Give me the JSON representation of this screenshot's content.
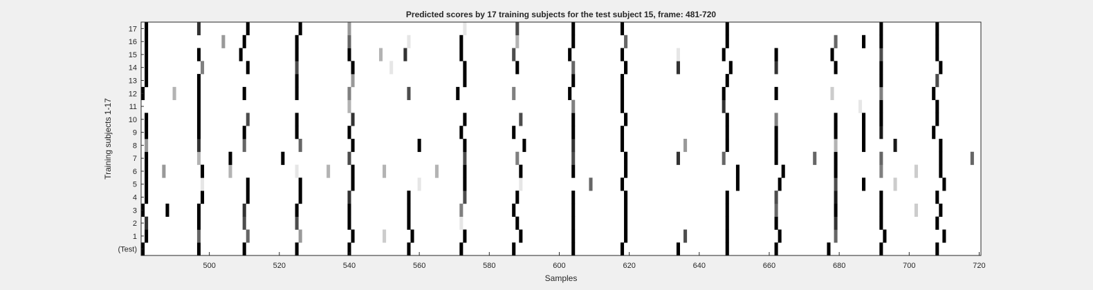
{
  "chart_data": {
    "type": "heatmap",
    "title": "Predicted scores by 17 training subjects for the test subject 15, frame: 481-720",
    "xlabel": "Samples",
    "ylabel": "Training subjects 1-17",
    "xlim": [
      481,
      720
    ],
    "x_ticks": [
      500,
      520,
      540,
      560,
      580,
      600,
      620,
      640,
      660,
      680,
      700,
      720
    ],
    "y_categories": [
      "(Test)",
      "1",
      "2",
      "3",
      "4",
      "5",
      "6",
      "7",
      "8",
      "9",
      "10",
      "11",
      "12",
      "13",
      "14",
      "15",
      "16",
      "17"
    ],
    "value_range": [
      0,
      1
    ],
    "colormap": "white (0) to black (1)",
    "rows": [
      {
        "label": "(Test)",
        "cells": [
          [
            481,
            1.0
          ],
          [
            497,
            1.0
          ],
          [
            510,
            1.0
          ],
          [
            525,
            1.0
          ],
          [
            540,
            1.0
          ],
          [
            557,
            1.0
          ],
          [
            572,
            1.0
          ],
          [
            587,
            1.0
          ],
          [
            604,
            1.0
          ],
          [
            618,
            1.0
          ],
          [
            634,
            1.0
          ],
          [
            648,
            1.0
          ],
          [
            662,
            1.0
          ],
          [
            677,
            1.0
          ],
          [
            692,
            1.0
          ],
          [
            708,
            1.0
          ]
        ]
      },
      {
        "label": "1",
        "cells": [
          [
            482,
            1.0
          ],
          [
            497,
            0.6
          ],
          [
            511,
            0.6
          ],
          [
            526,
            0.4
          ],
          [
            541,
            1.0
          ],
          [
            550,
            0.2
          ],
          [
            558,
            1.0
          ],
          [
            573,
            1.0
          ],
          [
            589,
            1.0
          ],
          [
            604,
            1.0
          ],
          [
            619,
            1.0
          ],
          [
            636,
            0.7
          ],
          [
            648,
            1.0
          ],
          [
            663,
            1.0
          ],
          [
            679,
            0.6
          ],
          [
            693,
            1.0
          ],
          [
            710,
            1.0
          ]
        ]
      },
      {
        "label": "2",
        "cells": [
          [
            482,
            0.8
          ],
          [
            497,
            1.0
          ],
          [
            510,
            0.7
          ],
          [
            525,
            0.7
          ],
          [
            540,
            1.0
          ],
          [
            557,
            1.0
          ],
          [
            572,
            0.1
          ],
          [
            588,
            1.0
          ],
          [
            604,
            1.0
          ],
          [
            619,
            1.0
          ],
          [
            648,
            1.0
          ],
          [
            662,
            1.0
          ],
          [
            679,
            0.8
          ],
          [
            692,
            1.0
          ],
          [
            708,
            1.0
          ]
        ]
      },
      {
        "label": "3",
        "cells": [
          [
            481,
            1.0
          ],
          [
            488,
            1.0
          ],
          [
            497,
            1.0
          ],
          [
            510,
            0.8
          ],
          [
            525,
            1.0
          ],
          [
            540,
            1.0
          ],
          [
            557,
            1.0
          ],
          [
            572,
            0.5
          ],
          [
            587,
            1.0
          ],
          [
            604,
            1.0
          ],
          [
            619,
            1.0
          ],
          [
            648,
            1.0
          ],
          [
            662,
            0.6
          ],
          [
            679,
            1.0
          ],
          [
            692,
            1.0
          ],
          [
            702,
            0.2
          ],
          [
            709,
            1.0
          ]
        ]
      },
      {
        "label": "4",
        "cells": [
          [
            482,
            1.0
          ],
          [
            498,
            1.0
          ],
          [
            511,
            1.0
          ],
          [
            526,
            1.0
          ],
          [
            540,
            0.8
          ],
          [
            557,
            1.0
          ],
          [
            573,
            0.7
          ],
          [
            588,
            1.0
          ],
          [
            604,
            1.0
          ],
          [
            619,
            1.0
          ],
          [
            648,
            1.0
          ],
          [
            662,
            0.7
          ],
          [
            679,
            0.9
          ],
          [
            692,
            1.0
          ],
          [
            708,
            1.0
          ]
        ]
      },
      {
        "label": "5",
        "cells": [
          [
            482,
            1.0
          ],
          [
            498,
            0.1
          ],
          [
            511,
            1.0
          ],
          [
            526,
            1.0
          ],
          [
            541,
            1.0
          ],
          [
            560,
            0.1
          ],
          [
            573,
            1.0
          ],
          [
            589,
            0.1
          ],
          [
            609,
            0.6
          ],
          [
            618,
            1.0
          ],
          [
            651,
            1.0
          ],
          [
            663,
            1.0
          ],
          [
            679,
            0.7
          ],
          [
            687,
            1.0
          ],
          [
            696,
            0.2
          ],
          [
            710,
            1.0
          ]
        ]
      },
      {
        "label": "6",
        "cells": [
          [
            482,
            1.0
          ],
          [
            487,
            0.4
          ],
          [
            498,
            1.0
          ],
          [
            506,
            0.3
          ],
          [
            525,
            0.1
          ],
          [
            534,
            0.3
          ],
          [
            541,
            1.0
          ],
          [
            550,
            0.3
          ],
          [
            565,
            0.3
          ],
          [
            573,
            1.0
          ],
          [
            589,
            1.0
          ],
          [
            604,
            1.0
          ],
          [
            619,
            1.0
          ],
          [
            651,
            1.0
          ],
          [
            664,
            1.0
          ],
          [
            679,
            1.0
          ],
          [
            692,
            0.5
          ],
          [
            702,
            0.2
          ],
          [
            709,
            1.0
          ]
        ]
      },
      {
        "label": "7",
        "cells": [
          [
            482,
            1.0
          ],
          [
            497,
            0.3
          ],
          [
            506,
            1.0
          ],
          [
            521,
            1.0
          ],
          [
            540,
            0.7
          ],
          [
            573,
            0.7
          ],
          [
            588,
            0.5
          ],
          [
            604,
            0.7
          ],
          [
            619,
            1.0
          ],
          [
            634,
            0.8
          ],
          [
            647,
            0.6
          ],
          [
            662,
            1.0
          ],
          [
            673,
            0.6
          ],
          [
            679,
            1.0
          ],
          [
            692,
            0.6
          ],
          [
            709,
            1.0
          ],
          [
            718,
            0.6
          ]
        ]
      },
      {
        "label": "8",
        "cells": [
          [
            482,
            0.4
          ],
          [
            497,
            0.8
          ],
          [
            510,
            0.6
          ],
          [
            526,
            0.6
          ],
          [
            541,
            1.0
          ],
          [
            560,
            1.0
          ],
          [
            573,
            1.0
          ],
          [
            590,
            1.0
          ],
          [
            604,
            0.8
          ],
          [
            618,
            1.0
          ],
          [
            636,
            0.4
          ],
          [
            648,
            1.0
          ],
          [
            662,
            1.0
          ],
          [
            679,
            0.3
          ],
          [
            687,
            1.0
          ],
          [
            696,
            0.9
          ],
          [
            709,
            1.0
          ]
        ]
      },
      {
        "label": "9",
        "cells": [
          [
            482,
            1.0
          ],
          [
            497,
            1.0
          ],
          [
            510,
            1.0
          ],
          [
            525,
            1.0
          ],
          [
            540,
            1.0
          ],
          [
            572,
            1.0
          ],
          [
            587,
            1.0
          ],
          [
            604,
            1.0
          ],
          [
            618,
            1.0
          ],
          [
            648,
            1.0
          ],
          [
            662,
            1.0
          ],
          [
            679,
            1.0
          ],
          [
            687,
            1.0
          ],
          [
            692,
            0.9
          ],
          [
            707,
            1.0
          ]
        ]
      },
      {
        "label": "10",
        "cells": [
          [
            482,
            1.0
          ],
          [
            497,
            1.0
          ],
          [
            511,
            0.7
          ],
          [
            525,
            1.0
          ],
          [
            541,
            0.8
          ],
          [
            573,
            1.0
          ],
          [
            589,
            0.7
          ],
          [
            604,
            1.0
          ],
          [
            619,
            1.0
          ],
          [
            648,
            1.0
          ],
          [
            662,
            0.5
          ],
          [
            679,
            1.0
          ],
          [
            687,
            1.0
          ],
          [
            692,
            1.0
          ],
          [
            708,
            1.0
          ]
        ]
      },
      {
        "label": "11",
        "cells": [
          [
            497,
            1.0
          ],
          [
            540,
            0.3
          ],
          [
            604,
            0.5
          ],
          [
            618,
            1.0
          ],
          [
            647,
            0.8
          ],
          [
            686,
            0.1
          ],
          [
            692,
            1.0
          ],
          [
            708,
            1.0
          ]
        ]
      },
      {
        "label": "12",
        "cells": [
          [
            481,
            1.0
          ],
          [
            490,
            0.3
          ],
          [
            497,
            1.0
          ],
          [
            510,
            1.0
          ],
          [
            525,
            1.0
          ],
          [
            540,
            0.5
          ],
          [
            557,
            0.7
          ],
          [
            571,
            1.0
          ],
          [
            587,
            0.5
          ],
          [
            603,
            1.0
          ],
          [
            618,
            1.0
          ],
          [
            647,
            1.0
          ],
          [
            662,
            1.0
          ],
          [
            678,
            0.2
          ],
          [
            692,
            0.5
          ],
          [
            707,
            1.0
          ]
        ]
      },
      {
        "label": "13",
        "cells": [
          [
            482,
            1.0
          ],
          [
            497,
            1.0
          ],
          [
            525,
            1.0
          ],
          [
            541,
            0.4
          ],
          [
            573,
            1.0
          ],
          [
            604,
            1.0
          ],
          [
            618,
            1.0
          ],
          [
            648,
            1.0
          ],
          [
            692,
            1.0
          ],
          [
            708,
            0.7
          ]
        ]
      },
      {
        "label": "14",
        "cells": [
          [
            482,
            1.0
          ],
          [
            498,
            0.5
          ],
          [
            511,
            1.0
          ],
          [
            525,
            0.7
          ],
          [
            541,
            1.0
          ],
          [
            552,
            0.1
          ],
          [
            573,
            1.0
          ],
          [
            588,
            1.0
          ],
          [
            604,
            0.6
          ],
          [
            619,
            1.0
          ],
          [
            634,
            0.8
          ],
          [
            649,
            1.0
          ],
          [
            662,
            0.8
          ],
          [
            679,
            1.0
          ],
          [
            692,
            1.0
          ],
          [
            709,
            1.0
          ]
        ]
      },
      {
        "label": "15",
        "cells": [
          [
            482,
            1.0
          ],
          [
            497,
            1.0
          ],
          [
            509,
            1.0
          ],
          [
            525,
            1.0
          ],
          [
            540,
            1.0
          ],
          [
            549,
            0.3
          ],
          [
            556,
            0.8
          ],
          [
            572,
            1.0
          ],
          [
            587,
            0.7
          ],
          [
            603,
            1.0
          ],
          [
            618,
            1.0
          ],
          [
            634,
            0.1
          ],
          [
            647,
            1.0
          ],
          [
            662,
            1.0
          ],
          [
            678,
            1.0
          ],
          [
            692,
            0.7
          ],
          [
            708,
            1.0
          ]
        ]
      },
      {
        "label": "16",
        "cells": [
          [
            482,
            1.0
          ],
          [
            504,
            0.4
          ],
          [
            510,
            1.0
          ],
          [
            525,
            1.0
          ],
          [
            540,
            0.6
          ],
          [
            557,
            0.1
          ],
          [
            572,
            1.0
          ],
          [
            588,
            0.3
          ],
          [
            604,
            1.0
          ],
          [
            619,
            0.6
          ],
          [
            648,
            1.0
          ],
          [
            679,
            0.6
          ],
          [
            687,
            1.0
          ],
          [
            692,
            1.0
          ],
          [
            708,
            1.0
          ]
        ]
      },
      {
        "label": "17",
        "cells": [
          [
            482,
            1.0
          ],
          [
            497,
            0.8
          ],
          [
            511,
            1.0
          ],
          [
            526,
            1.0
          ],
          [
            540,
            0.4
          ],
          [
            573,
            0.1
          ],
          [
            588,
            0.7
          ],
          [
            604,
            1.0
          ],
          [
            618,
            1.0
          ],
          [
            648,
            1.0
          ],
          [
            692,
            1.0
          ],
          [
            708,
            1.0
          ]
        ]
      }
    ]
  }
}
